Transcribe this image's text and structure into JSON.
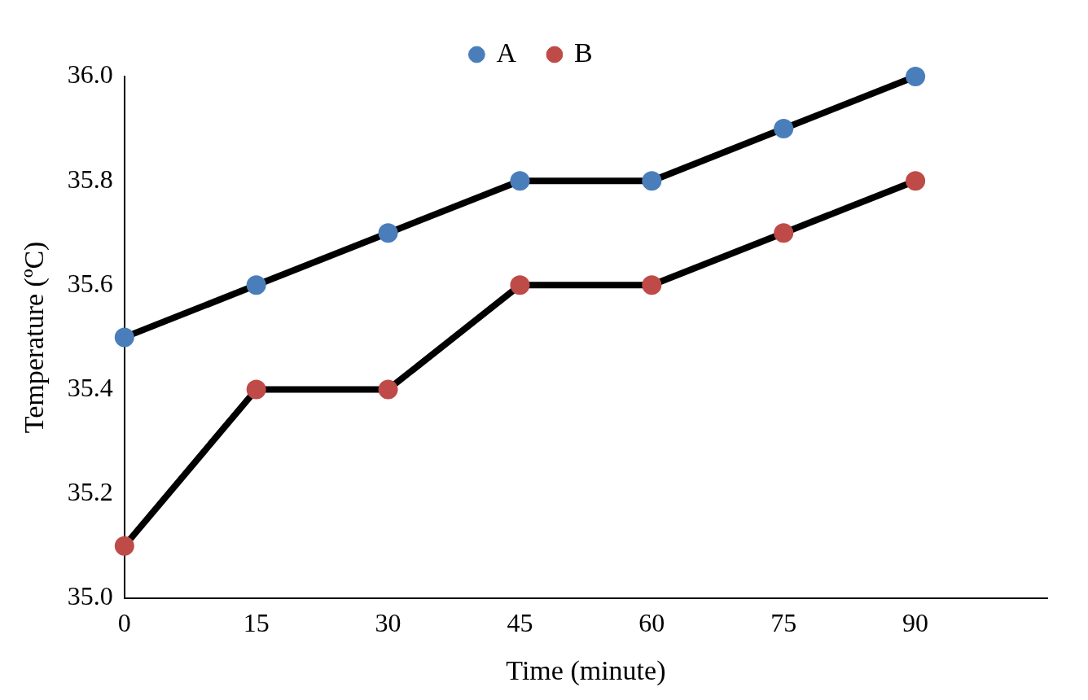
{
  "chart_data": {
    "type": "line",
    "xlabel": "Time (minute)",
    "ylabel": "Temperature (ºC)",
    "x": [
      0,
      15,
      30,
      45,
      60,
      75,
      90
    ],
    "series": [
      {
        "name": "A",
        "color": "#4a7ebb",
        "values": [
          35.5,
          35.6,
          35.7,
          35.8,
          35.8,
          35.9,
          36.0
        ]
      },
      {
        "name": "B",
        "color": "#be4b48",
        "values": [
          35.1,
          35.4,
          35.4,
          35.6,
          35.6,
          35.7,
          35.8
        ]
      }
    ],
    "xlim": [
      0,
      105
    ],
    "xticks": [
      0,
      15,
      30,
      45,
      60,
      75,
      90
    ],
    "ylim": [
      35.0,
      36.0
    ],
    "yticks": [
      {
        "value": 35.0,
        "label": "35.0"
      },
      {
        "value": 35.2,
        "label": "35.2"
      },
      {
        "value": 35.4,
        "label": "35.4"
      },
      {
        "value": 35.6,
        "label": "35.6"
      },
      {
        "value": 35.8,
        "label": "35.8"
      },
      {
        "value": 36.0,
        "label": "36.0"
      }
    ],
    "grid": false,
    "legend": "top",
    "marker": "circle",
    "line_style": "solid"
  }
}
